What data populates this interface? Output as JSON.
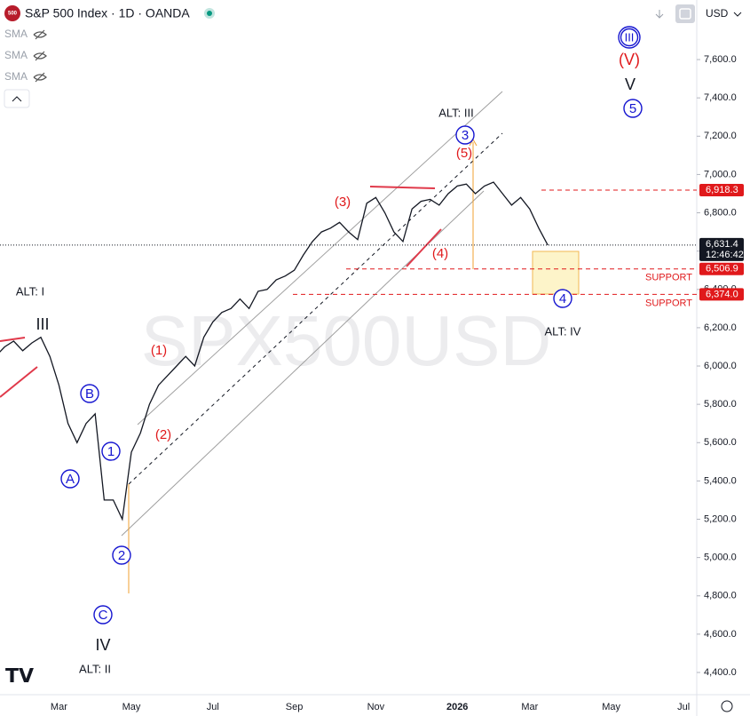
{
  "header": {
    "title": "S&P 500 Index · 1D · OANDA",
    "logo": "500",
    "indicators": [
      "SMA",
      "SMA",
      "SMA"
    ],
    "currency": "USD",
    "watermark": "SPX500USD"
  },
  "chart_data": {
    "type": "line",
    "categories": [
      null,
      null,
      null,
      null,
      null,
      null,
      null,
      "Mar",
      null,
      null,
      null,
      null,
      null,
      null,
      null,
      "May",
      null,
      null,
      null,
      null,
      null,
      null,
      null,
      null,
      "Jul",
      null,
      null,
      null,
      null,
      null,
      null,
      null,
      null,
      "Sep",
      null,
      null,
      null,
      null,
      null,
      null,
      null,
      null,
      "Nov",
      null,
      null,
      null,
      null,
      null,
      null,
      null,
      null,
      "2026",
      null,
      null,
      null,
      null,
      null,
      null,
      null,
      "Mar",
      null,
      null,
      null,
      null,
      null,
      null,
      null,
      null,
      "May",
      null,
      null,
      null,
      null,
      null,
      null,
      null,
      "Jul"
    ],
    "series": [
      {
        "name": "S&P 500 Index",
        "color": "#131722",
        "values": [
          6050,
          6100,
          6130,
          6080,
          6120,
          6150,
          6050,
          5900,
          5700,
          5600,
          5700,
          5750,
          5300,
          5300,
          5200,
          5550,
          5650,
          5800,
          5900,
          5950,
          6000,
          6050,
          6000,
          6150,
          6230,
          6280,
          6300,
          6350,
          6300,
          6390,
          6400,
          6450,
          6470,
          6500,
          6580,
          6650,
          6700,
          6720,
          6750,
          6700,
          6660,
          6850,
          6880,
          6800,
          6700,
          6650,
          6820,
          6860,
          6870,
          6840,
          6900,
          6940,
          6950,
          6900,
          6940,
          6960,
          6900,
          6840,
          6880,
          6820,
          6720,
          6631.4,
          null,
          null,
          null,
          null,
          null,
          null,
          null,
          null,
          null,
          null,
          null,
          null,
          null,
          null,
          null
        ]
      }
    ],
    "ylim": [
      4284,
      7911
    ],
    "yticks": [
      {
        "value": 4400,
        "label": "4,400.0"
      },
      {
        "value": 4600,
        "label": "4,600.0"
      },
      {
        "value": 4800,
        "label": "4,800.0"
      },
      {
        "value": 5000,
        "label": "5,000.0"
      },
      {
        "value": 5200,
        "label": "5,200.0"
      },
      {
        "value": 5400,
        "label": "5,400.0"
      },
      {
        "value": 5600,
        "label": "5,600.0"
      },
      {
        "value": 5800,
        "label": "5,800.0"
      },
      {
        "value": 6000,
        "label": "6,000.0"
      },
      {
        "value": 6200,
        "label": "6,200.0"
      },
      {
        "value": 6400,
        "label": "6,400.0"
      },
      {
        "value": 6600,
        "label": "6,600.0"
      },
      {
        "value": 6800,
        "label": "6,800.0"
      },
      {
        "value": 7000,
        "label": "7,000.0"
      },
      {
        "value": 7200,
        "label": "7,200.0"
      },
      {
        "value": 7400,
        "label": "7,400.0"
      },
      {
        "value": 7600,
        "label": "7,600.0"
      }
    ],
    "levels": [
      {
        "value": 6918.3,
        "label": "6,918.3",
        "color": "#e0191b"
      },
      {
        "value": 6506.9,
        "label": "6,506.9",
        "color": "#e0191b",
        "note": "SUPPORT"
      },
      {
        "value": 6374.0,
        "label": "6,374.0",
        "color": "#e0191b",
        "note": "SUPPORT"
      }
    ],
    "last": {
      "value": 6631.4,
      "label": "6,631.4",
      "countdown": "12:46:42"
    },
    "annotations": [
      "ALT: I",
      "III",
      "B",
      "A",
      "1",
      "2",
      "C",
      "IV",
      "ALT: II",
      "(1)",
      "(2)",
      "(3)",
      "(4)",
      "(5)",
      "ALT: III",
      "3",
      "4",
      "ALT: IV",
      "III",
      "(V)",
      "V",
      "5"
    ]
  }
}
